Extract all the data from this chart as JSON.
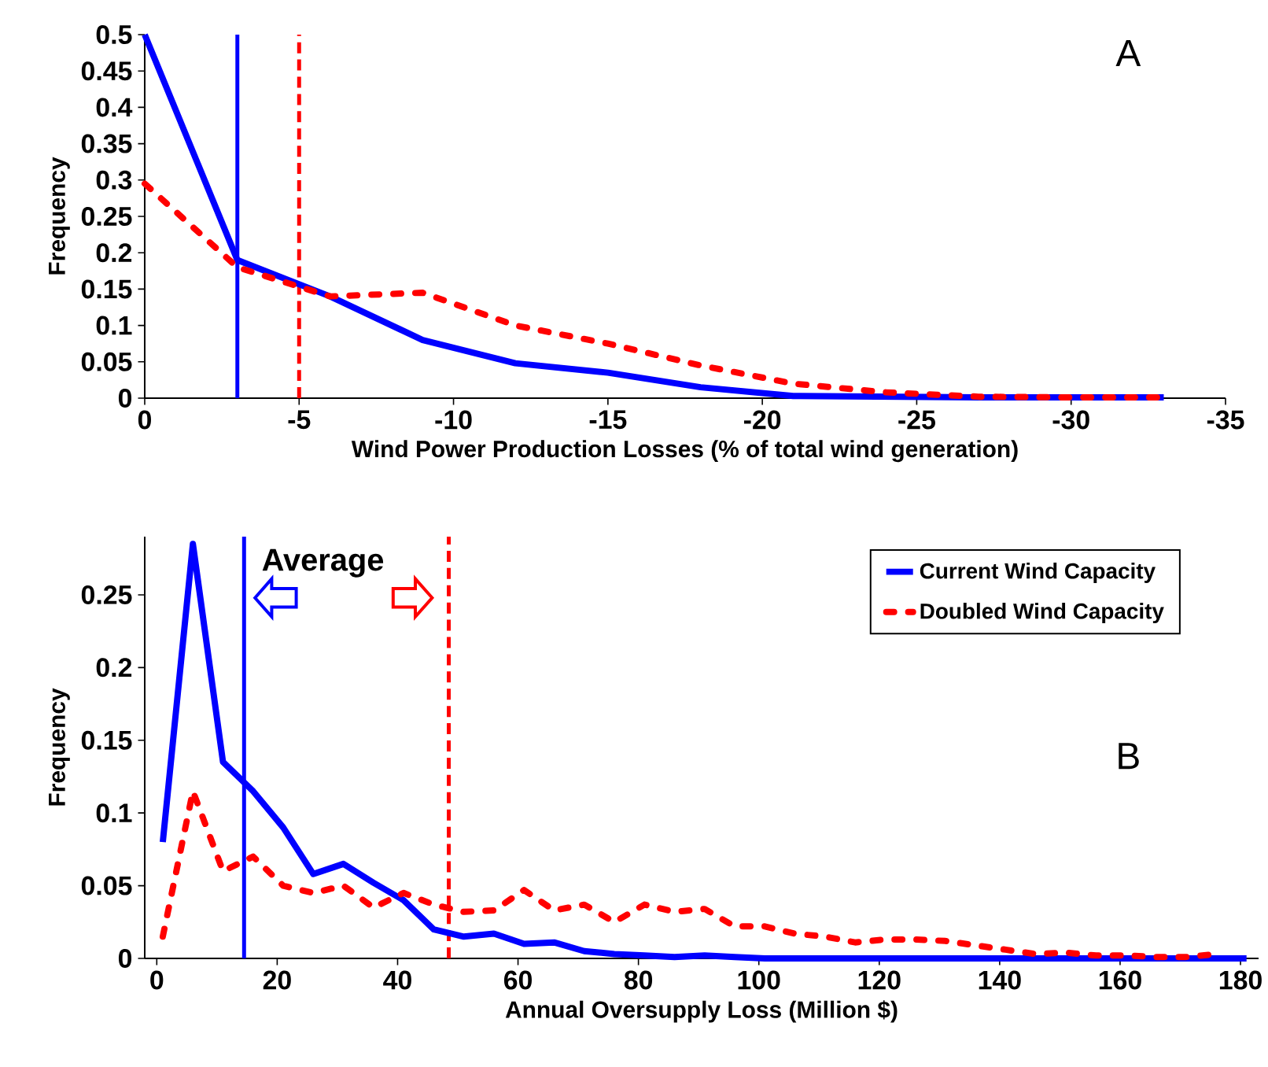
{
  "chart_data": [
    {
      "type": "line",
      "xlabel": "Wind Power Production Losses (% of total wind generation)",
      "ylabel": "Frequency",
      "annotations": [
        "A"
      ],
      "xlim": [
        0,
        -35
      ],
      "xticks": [
        0,
        -5,
        -10,
        -15,
        -20,
        -25,
        -30,
        -35
      ],
      "ylim": [
        0,
        0.5
      ],
      "yticks": [
        0,
        0.05,
        0.1,
        0.15,
        0.2,
        0.25,
        0.3,
        0.35,
        0.4,
        0.45,
        0.5
      ],
      "grid": false,
      "legend": false,
      "ref_lines": [
        {
          "axis": "x",
          "value": -3,
          "color": "#0000ff",
          "line_style": "solid"
        },
        {
          "axis": "x",
          "value": -5,
          "color": "#ff0000",
          "line_style": "dashed"
        }
      ],
      "series": [
        {
          "color": "#0000ff",
          "line_style": "solid",
          "x": [
            0,
            -3,
            -6,
            -9,
            -12,
            -15,
            -18,
            -21,
            -24,
            -27,
            -30,
            -33
          ],
          "values": [
            0.5,
            0.19,
            0.14,
            0.08,
            0.048,
            0.035,
            0.015,
            0.003,
            0.002,
            0.001,
            0.001,
            0.001
          ]
        },
        {
          "color": "#ff0000",
          "line_style": "dotted",
          "x": [
            0,
            -3,
            -6,
            -9,
            -12,
            -15,
            -18,
            -21,
            -24,
            -27,
            -30,
            -33
          ],
          "values": [
            0.295,
            0.18,
            0.14,
            0.145,
            0.1,
            0.075,
            0.045,
            0.02,
            0.008,
            0.002,
            0.001,
            0.001
          ]
        }
      ]
    },
    {
      "type": "line",
      "xlabel": "Annual Oversupply Loss (Million $)",
      "ylabel": "Frequency",
      "annotations": [
        "Average",
        "B"
      ],
      "xlim": [
        -2,
        183
      ],
      "xticks": [
        0,
        20,
        40,
        60,
        80,
        100,
        120,
        140,
        160,
        180
      ],
      "ylim": [
        0,
        0.29
      ],
      "yticks": [
        0,
        0.05,
        0.1,
        0.15,
        0.2,
        0.25
      ],
      "grid": false,
      "legend": "top right",
      "ref_lines": [
        {
          "axis": "x",
          "value": 14.5,
          "color": "#0000ff",
          "line_style": "solid"
        },
        {
          "axis": "x",
          "value": 48.5,
          "color": "#ff0000",
          "line_style": "dashed"
        }
      ],
      "series": [
        {
          "name": "Current Wind Capacity",
          "color": "#0000ff",
          "line_style": "solid",
          "x": [
            1,
            6,
            11,
            16,
            21,
            26,
            31,
            36,
            41,
            46,
            51,
            56,
            61,
            66,
            71,
            76,
            81,
            86,
            91,
            96,
            101,
            111,
            121,
            131,
            141,
            151,
            161,
            171,
            181
          ],
          "values": [
            0.08,
            0.285,
            0.135,
            0.115,
            0.09,
            0.058,
            0.065,
            0.052,
            0.04,
            0.02,
            0.015,
            0.017,
            0.01,
            0.011,
            0.005,
            0.003,
            0.002,
            0.001,
            0.002,
            0.001,
            0,
            0,
            0,
            0,
            0,
            0,
            0,
            0,
            0
          ]
        },
        {
          "name": "Doubled Wind Capacity",
          "color": "#ff0000",
          "line_style": "dotted",
          "x": [
            1,
            6,
            11,
            16,
            21,
            26,
            31,
            36,
            41,
            46,
            51,
            56,
            61,
            66,
            71,
            76,
            81,
            86,
            91,
            96,
            101,
            106,
            111,
            116,
            121,
            126,
            131,
            136,
            141,
            146,
            151,
            156,
            161,
            166,
            171,
            176
          ],
          "values": [
            0.015,
            0.115,
            0.06,
            0.07,
            0.05,
            0.045,
            0.05,
            0.035,
            0.045,
            0.037,
            0.032,
            0.033,
            0.047,
            0.033,
            0.037,
            0.025,
            0.037,
            0.032,
            0.034,
            0.022,
            0.022,
            0.017,
            0.015,
            0.011,
            0.013,
            0.013,
            0.012,
            0.009,
            0.006,
            0.003,
            0.004,
            0.002,
            0.002,
            0.001,
            0.001,
            0.003
          ]
        }
      ]
    }
  ]
}
